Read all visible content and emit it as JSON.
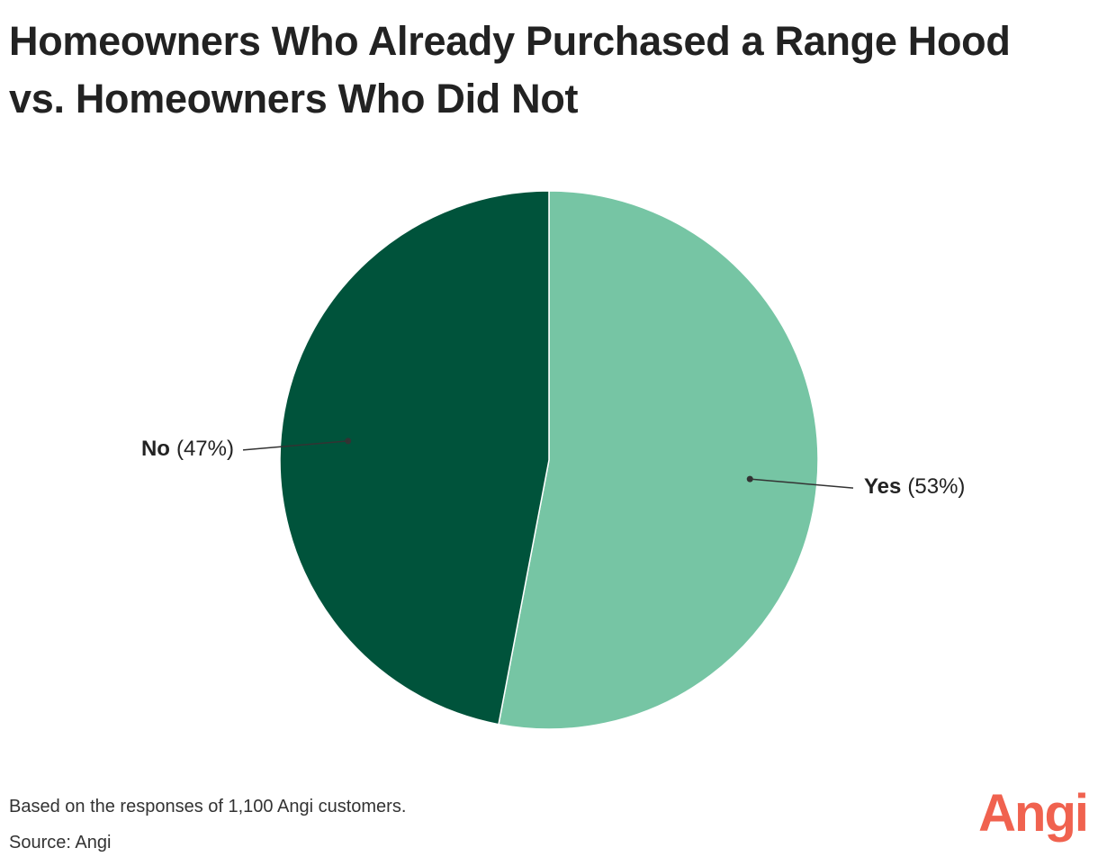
{
  "chart_data": {
    "type": "pie",
    "title": "Homeowners Who Already Purchased a Range Hood vs. Homeowners Who Did Not",
    "categories": [
      "Yes",
      "No"
    ],
    "values": [
      53,
      47
    ],
    "value_labels": [
      "(53%)",
      "(47%)"
    ],
    "colors": [
      "#76c5a4",
      "#00533b"
    ],
    "notes": [
      "Based on the responses of 1,100 Angi customers.",
      "Source: Angi"
    ],
    "logo": "Angi"
  }
}
